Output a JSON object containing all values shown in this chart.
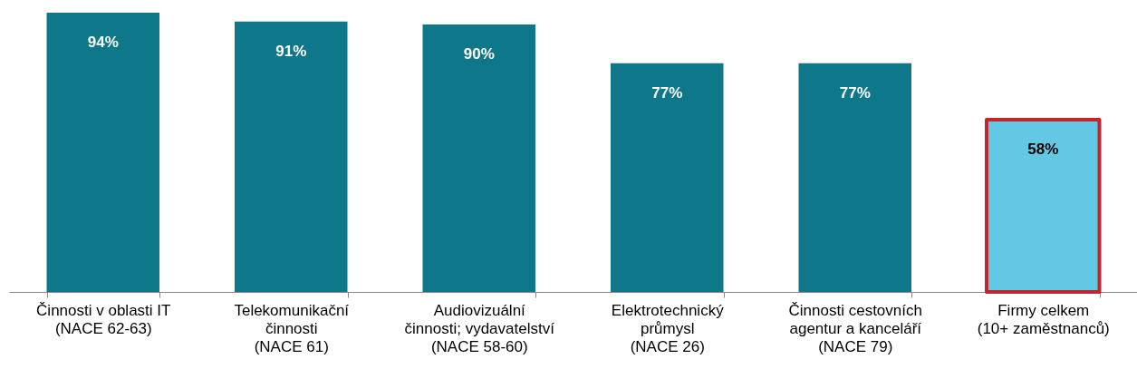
{
  "chart_data": {
    "type": "bar",
    "categories": [
      "Činnosti v oblasti IT\n(NACE 62-63)",
      "Telekomunikační\nčinnosti\n(NACE 61)",
      "Audiovizuální\nčinnosti; vydavatelství\n(NACE 58-60)",
      "Elektrotechnický\nprůmysl\n(NACE 26)",
      "Činnosti cestovních\nagentur a kanceláří\n(NACE 79)",
      "Firmy celkem\n(10+ zaměstnanců)"
    ],
    "values": [
      94,
      91,
      90,
      77,
      77,
      58
    ],
    "value_labels": [
      "94%",
      "91%",
      "90%",
      "77%",
      "77%",
      "58%"
    ],
    "colors": [
      "#0e788a",
      "#0e788a",
      "#0e788a",
      "#0e788a",
      "#0e788a",
      "#62c8e4"
    ],
    "grid": false
  }
}
